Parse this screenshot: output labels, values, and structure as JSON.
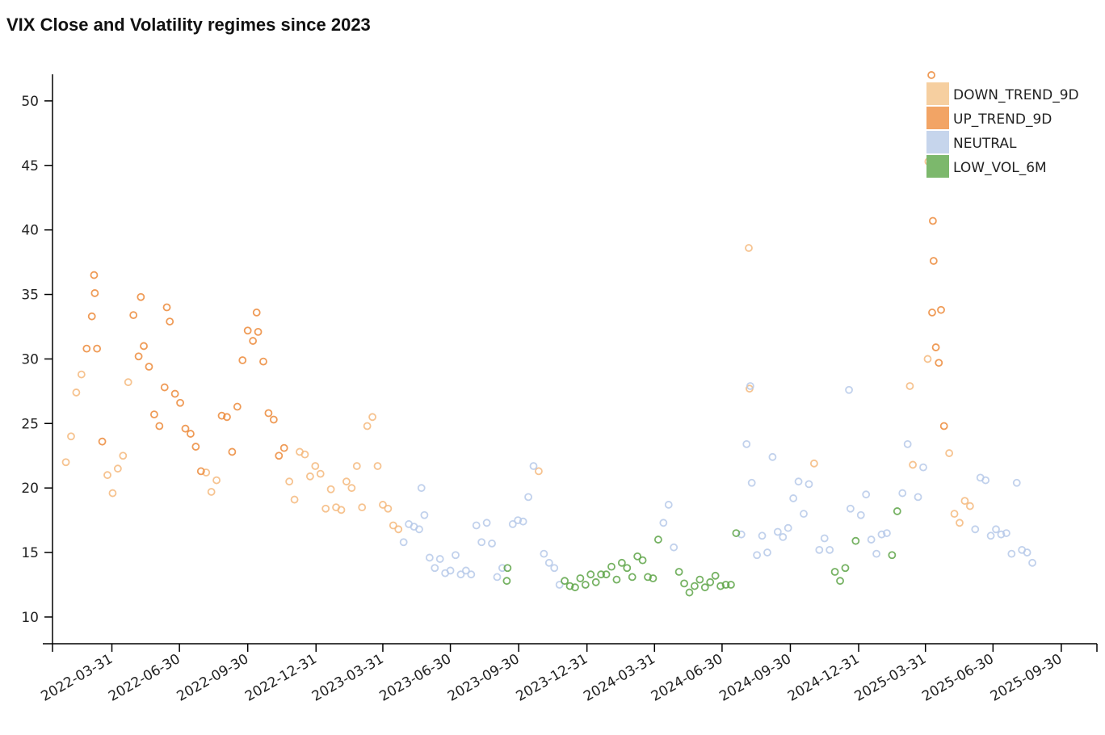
{
  "title": "VIX Close and Volatility regimes since 2023",
  "chart_data": {
    "type": "scatter",
    "title": "VIX Close and Volatility regimes since 2023",
    "xlabel": "",
    "ylabel": "",
    "xlim": [
      "2022-01-10",
      "2025-11-17"
    ],
    "ylim": [
      7.93,
      52.06
    ],
    "grid": false,
    "legend_position": "top-right",
    "x_ticks": [
      "2022-03-31",
      "2022-06-30",
      "2022-09-30",
      "2022-12-31",
      "2023-03-31",
      "2023-06-30",
      "2023-09-30",
      "2023-12-31",
      "2024-03-31",
      "2024-06-30",
      "2024-09-30",
      "2024-12-31",
      "2025-03-31",
      "2025-06-30",
      "2025-09-30"
    ],
    "y_ticks": [
      "10",
      "15",
      "20",
      "25",
      "30",
      "35",
      "40",
      "45",
      "50"
    ],
    "series": [
      {
        "name": "DOWN_TREND_9D",
        "color": "#f6cfa0",
        "stroke": "#f4b97c",
        "points": [
          [
            "2022-01-28",
            22.0
          ],
          [
            "2022-02-04",
            24.0
          ],
          [
            "2022-02-11",
            27.4
          ],
          [
            "2022-02-18",
            28.8
          ],
          [
            "2022-03-25",
            21.0
          ],
          [
            "2022-04-01",
            19.6
          ],
          [
            "2022-04-08",
            21.5
          ],
          [
            "2022-04-15",
            22.5
          ],
          [
            "2022-04-22",
            28.2
          ],
          [
            "2022-08-05",
            21.2
          ],
          [
            "2022-08-12",
            19.7
          ],
          [
            "2022-08-19",
            20.6
          ],
          [
            "2022-11-25",
            20.5
          ],
          [
            "2022-12-02",
            19.1
          ],
          [
            "2022-12-09",
            22.8
          ],
          [
            "2022-12-16",
            22.6
          ],
          [
            "2022-12-23",
            20.9
          ],
          [
            "2022-12-30",
            21.7
          ],
          [
            "2023-01-06",
            21.1
          ],
          [
            "2023-01-13",
            18.4
          ],
          [
            "2023-01-20",
            19.9
          ],
          [
            "2023-01-27",
            18.5
          ],
          [
            "2023-02-03",
            18.3
          ],
          [
            "2023-02-10",
            20.5
          ],
          [
            "2023-02-17",
            20.0
          ],
          [
            "2023-02-24",
            21.7
          ],
          [
            "2023-03-03",
            18.5
          ],
          [
            "2023-03-10",
            24.8
          ],
          [
            "2023-03-17",
            25.5
          ],
          [
            "2023-03-24",
            21.7
          ],
          [
            "2023-03-31",
            18.7
          ],
          [
            "2023-04-07",
            18.4
          ],
          [
            "2023-04-14",
            17.1
          ],
          [
            "2023-04-21",
            16.8
          ],
          [
            "2023-10-27",
            21.3
          ],
          [
            "2024-08-05",
            38.6
          ],
          [
            "2024-08-06",
            27.7
          ],
          [
            "2024-11-01",
            21.9
          ],
          [
            "2025-03-10",
            27.9
          ],
          [
            "2025-03-14",
            21.8
          ],
          [
            "2025-04-03",
            30.0
          ],
          [
            "2025-04-04",
            45.3
          ],
          [
            "2025-05-02",
            22.7
          ],
          [
            "2025-05-09",
            18.0
          ],
          [
            "2025-05-16",
            17.3
          ],
          [
            "2025-05-23",
            19.0
          ],
          [
            "2025-05-30",
            18.6
          ]
        ]
      },
      {
        "name": "UP_TREND_9D",
        "color": "#f2a465",
        "stroke": "#ec8a3a",
        "points": [
          [
            "2022-02-25",
            30.8
          ],
          [
            "2022-03-04",
            33.3
          ],
          [
            "2022-03-07",
            36.5
          ],
          [
            "2022-03-08",
            35.1
          ],
          [
            "2022-03-11",
            30.8
          ],
          [
            "2022-03-18",
            23.6
          ],
          [
            "2022-04-29",
            33.4
          ],
          [
            "2022-05-06",
            30.2
          ],
          [
            "2022-05-09",
            34.8
          ],
          [
            "2022-05-13",
            31.0
          ],
          [
            "2022-05-20",
            29.4
          ],
          [
            "2022-05-27",
            25.7
          ],
          [
            "2022-06-03",
            24.8
          ],
          [
            "2022-06-10",
            27.8
          ],
          [
            "2022-06-13",
            34.0
          ],
          [
            "2022-06-17",
            32.9
          ],
          [
            "2022-06-24",
            27.3
          ],
          [
            "2022-07-01",
            26.6
          ],
          [
            "2022-07-08",
            24.6
          ],
          [
            "2022-07-15",
            24.2
          ],
          [
            "2022-07-22",
            23.2
          ],
          [
            "2022-07-29",
            21.3
          ],
          [
            "2022-08-26",
            25.6
          ],
          [
            "2022-09-02",
            25.5
          ],
          [
            "2022-09-09",
            22.8
          ],
          [
            "2022-09-16",
            26.3
          ],
          [
            "2022-09-23",
            29.9
          ],
          [
            "2022-09-30",
            32.2
          ],
          [
            "2022-10-07",
            31.4
          ],
          [
            "2022-10-12",
            33.6
          ],
          [
            "2022-10-14",
            32.1
          ],
          [
            "2022-10-21",
            29.8
          ],
          [
            "2022-10-28",
            25.8
          ],
          [
            "2022-11-04",
            25.3
          ],
          [
            "2022-11-11",
            22.5
          ],
          [
            "2022-11-18",
            23.1
          ],
          [
            "2025-04-07",
            47.0
          ],
          [
            "2025-04-08",
            52.0
          ],
          [
            "2025-04-09",
            33.6
          ],
          [
            "2025-04-10",
            40.7
          ],
          [
            "2025-04-11",
            37.6
          ],
          [
            "2025-04-14",
            30.9
          ],
          [
            "2025-04-18",
            29.7
          ],
          [
            "2025-04-21",
            33.8
          ],
          [
            "2025-04-25",
            24.8
          ]
        ]
      },
      {
        "name": "NEUTRAL",
        "color": "#c6d5ec",
        "stroke": "#b6c9e9",
        "points": [
          [
            "2023-04-28",
            15.8
          ],
          [
            "2023-05-05",
            17.2
          ],
          [
            "2023-05-12",
            17.0
          ],
          [
            "2023-05-19",
            16.8
          ],
          [
            "2023-05-22",
            20.0
          ],
          [
            "2023-05-26",
            17.9
          ],
          [
            "2023-06-02",
            14.6
          ],
          [
            "2023-06-09",
            13.8
          ],
          [
            "2023-06-16",
            14.5
          ],
          [
            "2023-06-23",
            13.4
          ],
          [
            "2023-06-30",
            13.6
          ],
          [
            "2023-07-07",
            14.8
          ],
          [
            "2023-07-14",
            13.3
          ],
          [
            "2023-07-21",
            13.6
          ],
          [
            "2023-07-28",
            13.3
          ],
          [
            "2023-08-04",
            17.1
          ],
          [
            "2023-08-11",
            15.8
          ],
          [
            "2023-08-18",
            17.3
          ],
          [
            "2023-08-25",
            15.7
          ],
          [
            "2023-09-01",
            13.1
          ],
          [
            "2023-09-08",
            13.8
          ],
          [
            "2023-09-22",
            17.2
          ],
          [
            "2023-09-29",
            17.5
          ],
          [
            "2023-10-06",
            17.4
          ],
          [
            "2023-10-13",
            19.3
          ],
          [
            "2023-10-20",
            21.7
          ],
          [
            "2023-11-03",
            14.9
          ],
          [
            "2023-11-10",
            14.2
          ],
          [
            "2023-11-17",
            13.8
          ],
          [
            "2023-11-24",
            12.5
          ],
          [
            "2024-04-12",
            17.3
          ],
          [
            "2024-04-19",
            18.7
          ],
          [
            "2024-04-26",
            15.4
          ],
          [
            "2024-07-26",
            16.4
          ],
          [
            "2024-08-02",
            23.4
          ],
          [
            "2024-08-07",
            27.9
          ],
          [
            "2024-08-09",
            20.4
          ],
          [
            "2024-08-16",
            14.8
          ],
          [
            "2024-08-23",
            16.3
          ],
          [
            "2024-08-30",
            15.0
          ],
          [
            "2024-09-06",
            22.4
          ],
          [
            "2024-09-13",
            16.6
          ],
          [
            "2024-09-20",
            16.2
          ],
          [
            "2024-09-27",
            16.9
          ],
          [
            "2024-10-04",
            19.2
          ],
          [
            "2024-10-11",
            20.5
          ],
          [
            "2024-10-18",
            18.0
          ],
          [
            "2024-10-25",
            20.3
          ],
          [
            "2024-11-08",
            15.2
          ],
          [
            "2024-11-15",
            16.1
          ],
          [
            "2024-11-22",
            15.2
          ],
          [
            "2024-12-18",
            27.6
          ],
          [
            "2024-12-20",
            18.4
          ],
          [
            "2025-01-03",
            17.9
          ],
          [
            "2025-01-10",
            19.5
          ],
          [
            "2025-01-17",
            16.0
          ],
          [
            "2025-01-24",
            14.9
          ],
          [
            "2025-01-31",
            16.4
          ],
          [
            "2025-02-07",
            16.5
          ],
          [
            "2025-02-28",
            19.6
          ],
          [
            "2025-03-07",
            23.4
          ],
          [
            "2025-03-21",
            19.3
          ],
          [
            "2025-03-28",
            21.6
          ],
          [
            "2025-06-06",
            16.8
          ],
          [
            "2025-06-13",
            20.8
          ],
          [
            "2025-06-20",
            20.6
          ],
          [
            "2025-06-27",
            16.3
          ],
          [
            "2025-07-04",
            16.8
          ],
          [
            "2025-07-11",
            16.4
          ],
          [
            "2025-07-18",
            16.5
          ],
          [
            "2025-07-25",
            14.9
          ],
          [
            "2025-08-01",
            20.4
          ],
          [
            "2025-08-08",
            15.2
          ],
          [
            "2025-08-15",
            15.0
          ],
          [
            "2025-08-22",
            14.2
          ]
        ]
      },
      {
        "name": "LOW_VOL_6M",
        "color": "#7cb86c",
        "stroke": "#5ea548",
        "points": [
          [
            "2023-09-14",
            12.8
          ],
          [
            "2023-09-15",
            13.8
          ],
          [
            "2023-12-01",
            12.8
          ],
          [
            "2023-12-08",
            12.4
          ],
          [
            "2023-12-15",
            12.3
          ],
          [
            "2023-12-22",
            13.0
          ],
          [
            "2023-12-29",
            12.5
          ],
          [
            "2024-01-05",
            13.3
          ],
          [
            "2024-01-12",
            12.7
          ],
          [
            "2024-01-19",
            13.3
          ],
          [
            "2024-01-26",
            13.3
          ],
          [
            "2024-02-02",
            13.9
          ],
          [
            "2024-02-09",
            12.9
          ],
          [
            "2024-02-16",
            14.2
          ],
          [
            "2024-02-23",
            13.8
          ],
          [
            "2024-03-01",
            13.1
          ],
          [
            "2024-03-08",
            14.7
          ],
          [
            "2024-03-15",
            14.4
          ],
          [
            "2024-03-22",
            13.1
          ],
          [
            "2024-03-29",
            13.0
          ],
          [
            "2024-04-05",
            16.0
          ],
          [
            "2024-05-03",
            13.5
          ],
          [
            "2024-05-10",
            12.6
          ],
          [
            "2024-05-17",
            11.9
          ],
          [
            "2024-05-24",
            12.4
          ],
          [
            "2024-05-31",
            12.9
          ],
          [
            "2024-06-07",
            12.3
          ],
          [
            "2024-06-14",
            12.7
          ],
          [
            "2024-06-21",
            13.2
          ],
          [
            "2024-06-28",
            12.4
          ],
          [
            "2024-07-05",
            12.5
          ],
          [
            "2024-07-12",
            12.5
          ],
          [
            "2024-07-19",
            16.5
          ],
          [
            "2024-11-29",
            13.5
          ],
          [
            "2024-12-06",
            12.8
          ],
          [
            "2024-12-13",
            13.8
          ],
          [
            "2024-12-27",
            15.9
          ],
          [
            "2025-02-14",
            14.8
          ],
          [
            "2025-02-21",
            18.2
          ]
        ]
      }
    ]
  }
}
